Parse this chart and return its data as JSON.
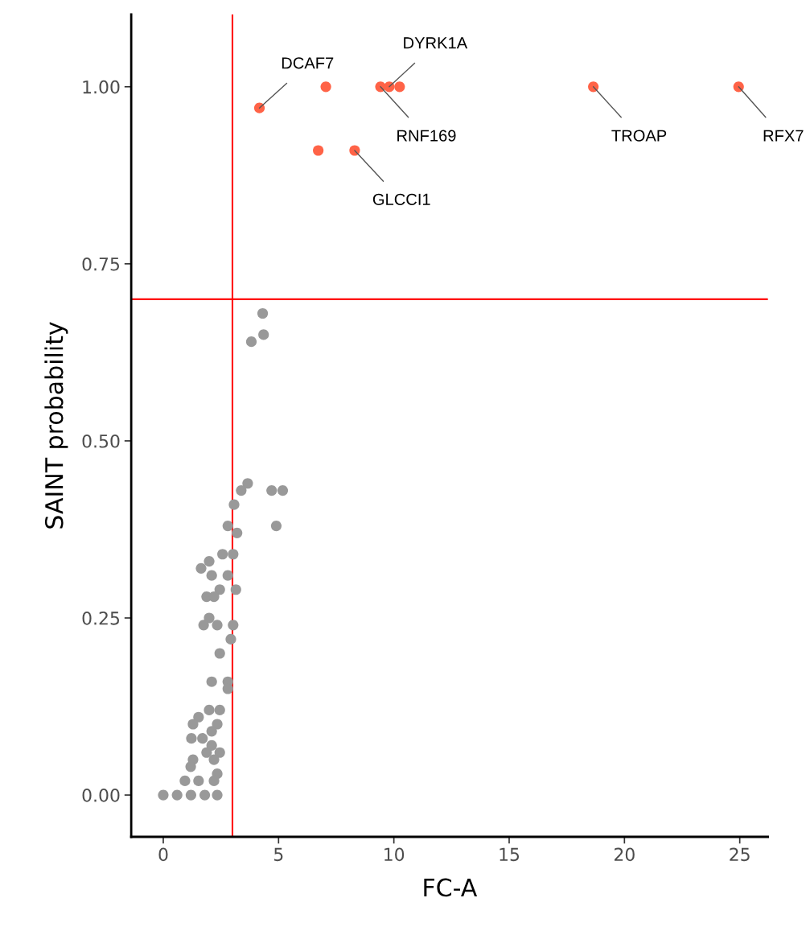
{
  "chart_data": {
    "type": "scatter",
    "xlabel": "FC-A",
    "ylabel": "SAINT probability",
    "xlim": [
      -1.39,
      26.22
    ],
    "ylim": [
      -0.059,
      1.102
    ],
    "xticks": [
      0,
      5,
      10,
      15,
      20,
      25
    ],
    "yticks": [
      {
        "value": 0,
        "label": "0.00"
      },
      {
        "value": 0.25,
        "label": "0.25"
      },
      {
        "value": 0.5,
        "label": "0.50"
      },
      {
        "value": 0.75,
        "label": "0.75"
      },
      {
        "value": 1,
        "label": "1.00"
      }
    ],
    "grid": false,
    "marker": "circle",
    "series": [
      {
        "color": "#999999",
        "x": [
          4.31,
          4.35,
          3.82,
          3.66,
          3.38,
          4.7,
          5.18,
          3.07,
          4.9,
          2.8,
          3.2,
          2.57,
          3.03,
          1.99,
          1.64,
          2.1,
          2.8,
          2.45,
          3.15,
          1.88,
          2.2,
          1.99,
          1.75,
          2.34,
          3.03,
          2.93,
          2.45,
          2.1,
          2.8,
          2.8,
          1.99,
          2.45,
          1.53,
          1.29,
          2.34,
          2.1,
          1.22,
          1.7,
          2.1,
          2.45,
          1.29,
          1.88,
          2.2,
          1.19,
          2.34,
          0.94,
          1.53,
          2.2,
          0,
          0.6,
          1.2,
          1.8,
          2.34
        ],
        "values": [
          0.68,
          0.65,
          0.64,
          0.44,
          0.43,
          0.43,
          0.43,
          0.41,
          0.38,
          0.38,
          0.37,
          0.34,
          0.34,
          0.33,
          0.32,
          0.31,
          0.31,
          0.29,
          0.29,
          0.28,
          0.28,
          0.25,
          0.24,
          0.24,
          0.24,
          0.22,
          0.2,
          0.16,
          0.16,
          0.15,
          0.12,
          0.12,
          0.11,
          0.1,
          0.1,
          0.09,
          0.08,
          0.08,
          0.07,
          0.06,
          0.05,
          0.06,
          0.05,
          0.04,
          0.03,
          0.02,
          0.02,
          0.02,
          0,
          0,
          0,
          0,
          0
        ]
      },
      {
        "color": "#ff6347",
        "x": [
          4.17,
          7.05,
          9.42,
          9.8,
          10.25,
          6.72,
          8.3,
          18.65,
          24.95
        ],
        "values": [
          0.97,
          1.0,
          1.0,
          1.0,
          1.0,
          0.91,
          0.91,
          1.0,
          1.0
        ]
      }
    ],
    "ref_lines": [
      {
        "axis": "x",
        "value": 3,
        "color": "#ff0000"
      },
      {
        "axis": "y",
        "value": 0.7,
        "color": "#ff0000"
      }
    ],
    "annotations": [
      {
        "text": "DCAF7",
        "x": 4.17,
        "y": 0.97
      },
      {
        "text": "DYRK1A",
        "x": 9.8,
        "y": 1.0
      },
      {
        "text": "RNF169",
        "x": 9.42,
        "y": 1.0
      },
      {
        "text": "GLCCI1",
        "x": 8.3,
        "y": 0.91
      },
      {
        "text": "TROAP",
        "x": 18.65,
        "y": 1.0
      },
      {
        "text": "RFX7",
        "x": 24.95,
        "y": 1.0
      }
    ]
  }
}
